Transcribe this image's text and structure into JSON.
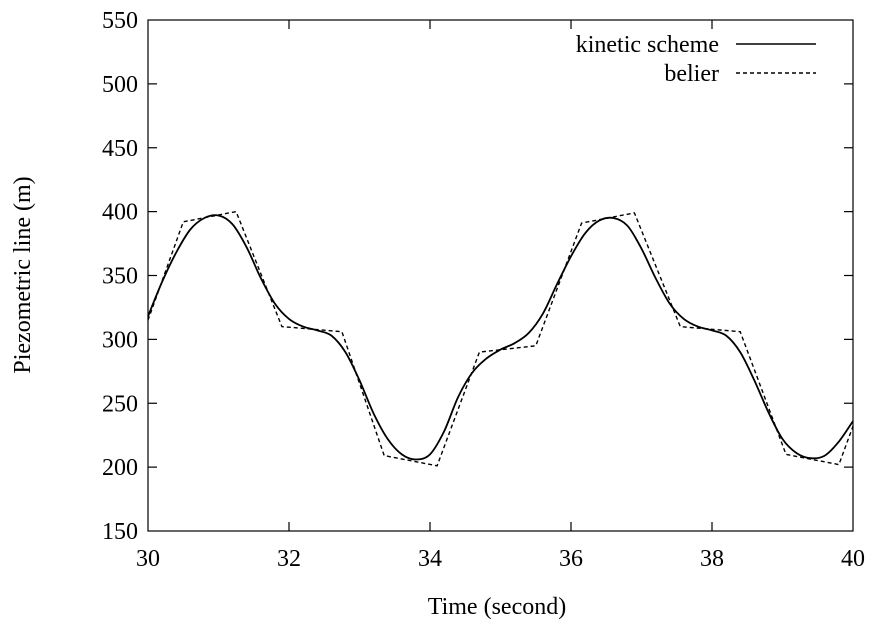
{
  "chart_data": {
    "type": "line",
    "title": "",
    "xlabel": "Time (second)",
    "ylabel": "Piezometric line (m)",
    "xlim": [
      30,
      40
    ],
    "ylim": [
      150,
      550
    ],
    "xticks": [
      30,
      32,
      34,
      36,
      38,
      40
    ],
    "yticks": [
      150,
      200,
      250,
      300,
      350,
      400,
      450,
      500,
      550
    ],
    "xtick_labels": [
      "30",
      "32",
      "34",
      "36",
      "38",
      "40"
    ],
    "ytick_labels": [
      "150",
      "200",
      "250",
      "300",
      "350",
      "400",
      "450",
      "500",
      "550"
    ],
    "grid": false,
    "legend_position": "top-right",
    "series": [
      {
        "name": "kinetic scheme",
        "style": "solid",
        "color": "#000000",
        "x": [
          30.0,
          30.2,
          30.4,
          30.6,
          30.8,
          31.0,
          31.2,
          31.4,
          31.6,
          31.8,
          32.0,
          32.2,
          32.4,
          32.6,
          32.8,
          33.0,
          33.2,
          33.4,
          33.6,
          33.8,
          34.0,
          34.2,
          34.4,
          34.6,
          34.8,
          35.0,
          35.2,
          35.4,
          35.6,
          35.8,
          36.0,
          36.2,
          36.4,
          36.6,
          36.8,
          37.0,
          37.2,
          37.4,
          37.6,
          37.8,
          38.0,
          38.2,
          38.4,
          38.6,
          38.8,
          39.0,
          39.2,
          39.4,
          39.6,
          39.8,
          40.0
        ],
        "y": [
          318,
          345,
          368,
          386,
          395,
          397,
          390,
          372,
          348,
          328,
          316,
          310,
          307,
          303,
          290,
          268,
          242,
          222,
          210,
          206,
          210,
          228,
          255,
          274,
          285,
          292,
          297,
          305,
          320,
          343,
          365,
          383,
          393,
          395,
          389,
          371,
          348,
          328,
          316,
          310,
          307,
          303,
          290,
          268,
          243,
          222,
          211,
          207,
          209,
          220,
          236
        ]
      },
      {
        "name": "belier",
        "style": "dashed",
        "color": "#000000",
        "x": [
          30.0,
          30.5,
          31.25,
          31.9,
          32.75,
          33.35,
          34.1,
          34.7,
          35.5,
          36.15,
          36.9,
          37.55,
          38.4,
          39.05,
          39.8,
          40.0
        ],
        "y": [
          315,
          392,
          400,
          310,
          306,
          209,
          201,
          290,
          295,
          391,
          399,
          310,
          306,
          210,
          202,
          232
        ]
      }
    ]
  }
}
